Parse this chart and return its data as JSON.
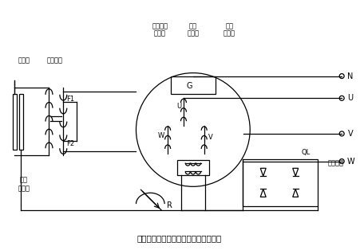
{
  "title": "三次谐波励磁三相交流发电机原理电路",
  "labels": {
    "jidianhuang": "集电环",
    "zhuanziraozu": "转子绕组",
    "sancibofu": "三次谐波",
    "furao": "副绕组",
    "dingzi": "定子",
    "zhuraozu": "主绕组",
    "jibo": "基波",
    "furao2": "副绕组",
    "changqibianzuqi": "磁场\n变阻器",
    "R": "R",
    "QL": "QL",
    "zhengliuqiaozu": "整流桥组",
    "G": "G",
    "U_label": "U",
    "V_label": "V",
    "W_label": "W",
    "N_label": "N",
    "F1": "F1",
    "F2": "F2"
  },
  "bg_color": "#ffffff",
  "line_color": "#000000"
}
